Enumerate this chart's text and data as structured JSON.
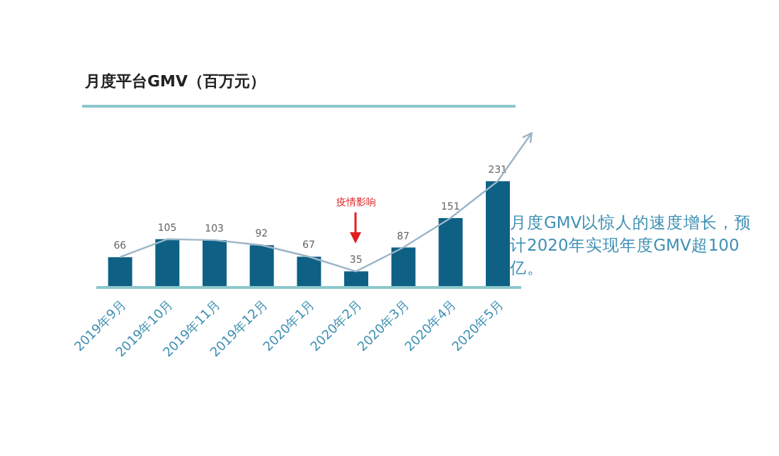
{
  "chart_data": {
    "type": "bar",
    "title": "月度平台GMV（百万元）",
    "categories": [
      "2019年9月",
      "2019年10月",
      "2019年11月",
      "2019年12月",
      "2020年1月",
      "2020年2月",
      "2020年3月",
      "2020年4月",
      "2020年5月"
    ],
    "series": [
      {
        "color": "#0e6185",
        "values": [
          66,
          105,
          103,
          92,
          67,
          35,
          87,
          151,
          231
        ]
      },
      {
        "type": "line",
        "color": "#9bb5c8",
        "values": [
          66,
          105,
          103,
          92,
          67,
          35,
          87,
          151,
          231
        ],
        "value_labels": [
          "66",
          "105",
          "103",
          "92",
          "67",
          "35",
          "87",
          "151",
          "231"
        ]
      }
    ],
    "tick_labels": "x",
    "marker": "none",
    "grid": false,
    "legend": false,
    "annotations": [
      "疫情影响",
      "月度GMV以惊人的速度增长，预计2020年实现年度GMV超100亿。"
    ]
  }
}
